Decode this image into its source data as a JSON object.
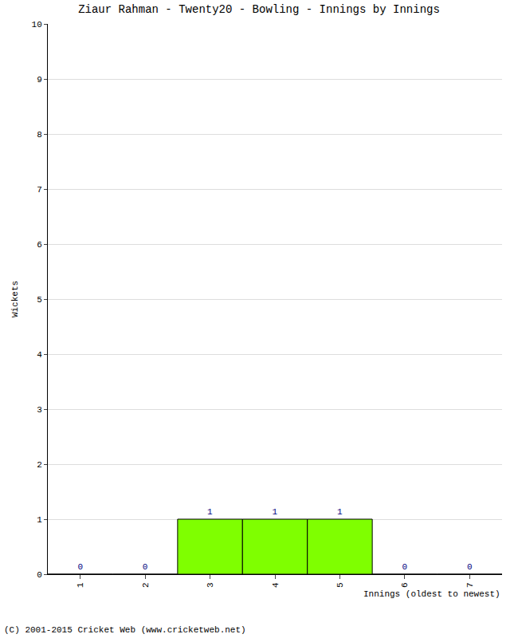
{
  "chart_data": {
    "type": "bar",
    "title": "Ziaur Rahman - Twenty20 - Bowling - Innings by Innings",
    "x_label": "Innings (oldest to newest)",
    "y_label": "Wickets",
    "categories": [
      "1",
      "2",
      "3",
      "4",
      "5",
      "6",
      "7"
    ],
    "values": [
      0,
      0,
      1,
      1,
      1,
      0,
      0
    ],
    "color": "#7fff00",
    "ylim": [
      0,
      10
    ],
    "yticks": [
      0,
      1,
      2,
      3,
      4,
      5,
      6,
      7,
      8,
      9,
      10
    ],
    "grid": true,
    "data_labels": true,
    "annotations": [
      "(C) 2001-2015 Cricket Web (www.cricketweb.net)"
    ]
  }
}
